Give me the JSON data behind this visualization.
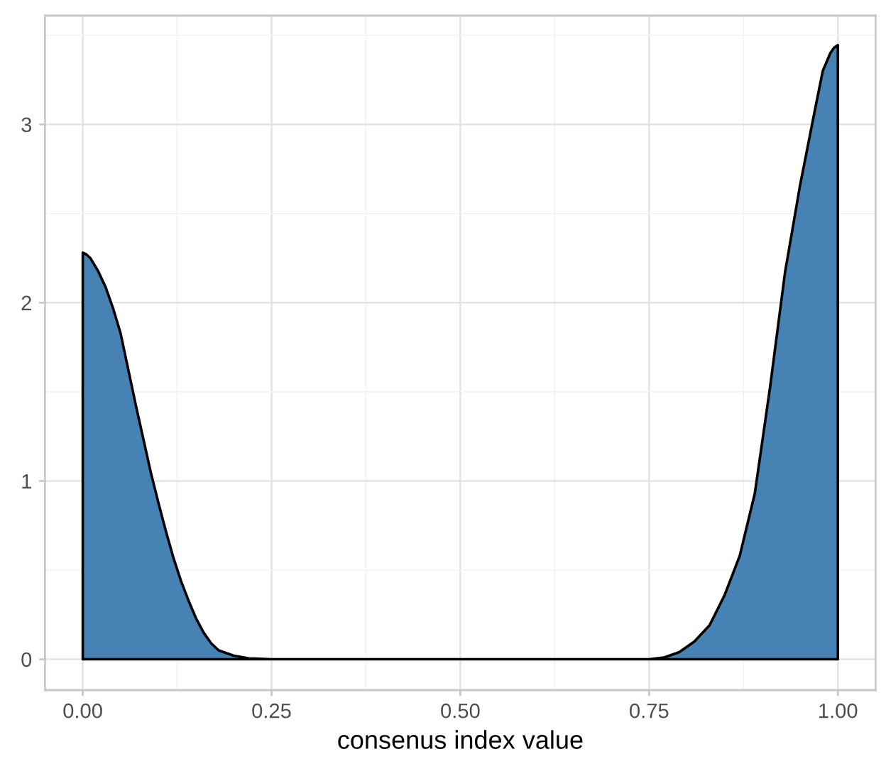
{
  "chart_data": {
    "type": "area",
    "xlabel": "consenus index value",
    "x": [
      0,
      0.005,
      0.01,
      0.02,
      0.03,
      0.04,
      0.05,
      0.06,
      0.07,
      0.08,
      0.09,
      0.1,
      0.11,
      0.12,
      0.13,
      0.14,
      0.15,
      0.16,
      0.17,
      0.18,
      0.2,
      0.22,
      0.25,
      0.5,
      0.75,
      0.77,
      0.79,
      0.81,
      0.83,
      0.85,
      0.87,
      0.89,
      0.91,
      0.93,
      0.95,
      0.97,
      0.98,
      0.99,
      0.995,
      1.0
    ],
    "values": [
      2.28,
      2.27,
      2.25,
      2.18,
      2.09,
      1.97,
      1.83,
      1.63,
      1.43,
      1.24,
      1.05,
      0.88,
      0.72,
      0.57,
      0.44,
      0.33,
      0.23,
      0.15,
      0.09,
      0.05,
      0.02,
      0.005,
      0,
      0,
      0,
      0.01,
      0.04,
      0.1,
      0.19,
      0.36,
      0.58,
      0.93,
      1.52,
      2.17,
      2.66,
      3.09,
      3.3,
      3.4,
      3.43,
      3.445
    ],
    "color": "#4682b4",
    "xlim": [
      -0.05,
      1.05
    ],
    "ylim": [
      -0.173,
      3.61
    ],
    "xticks": [
      {
        "value": 0,
        "label": "0.00"
      },
      {
        "value": 0.25,
        "label": "0.25"
      },
      {
        "value": 0.5,
        "label": "0.50"
      },
      {
        "value": 0.75,
        "label": "0.75"
      },
      {
        "value": 1,
        "label": "1.00"
      }
    ],
    "yticks": [
      0,
      1,
      2,
      3
    ],
    "grid": true
  }
}
